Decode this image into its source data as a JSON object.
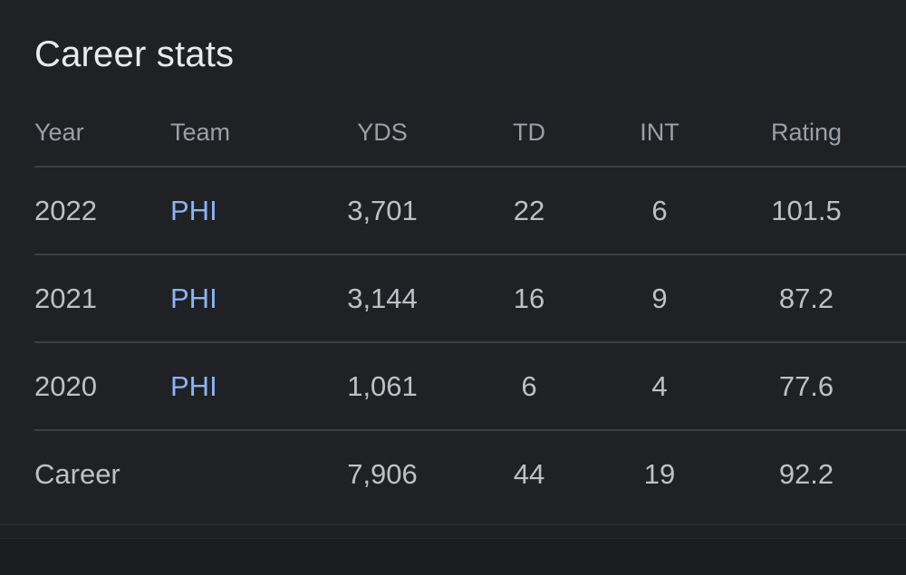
{
  "title": "Career stats",
  "columns": {
    "year": "Year",
    "team": "Team",
    "yds": "YDS",
    "td": "TD",
    "int": "INT",
    "rating": "Rating"
  },
  "rows": [
    {
      "year": "2022",
      "team": "PHI",
      "yds": "3,701",
      "td": "22",
      "int": "6",
      "rating": "101.5"
    },
    {
      "year": "2021",
      "team": "PHI",
      "yds": "3,144",
      "td": "16",
      "int": "9",
      "rating": "87.2"
    },
    {
      "year": "2020",
      "team": "PHI",
      "yds": "1,061",
      "td": "6",
      "int": "4",
      "rating": "77.6"
    }
  ],
  "career": {
    "label": "Career",
    "yds": "7,906",
    "td": "44",
    "int": "19",
    "rating": "92.2"
  },
  "colors": {
    "background": "#202124",
    "text": "#bdc1c6",
    "header_text": "#9aa0a6",
    "link": "#8ab4f8",
    "divider": "#3c4043"
  }
}
